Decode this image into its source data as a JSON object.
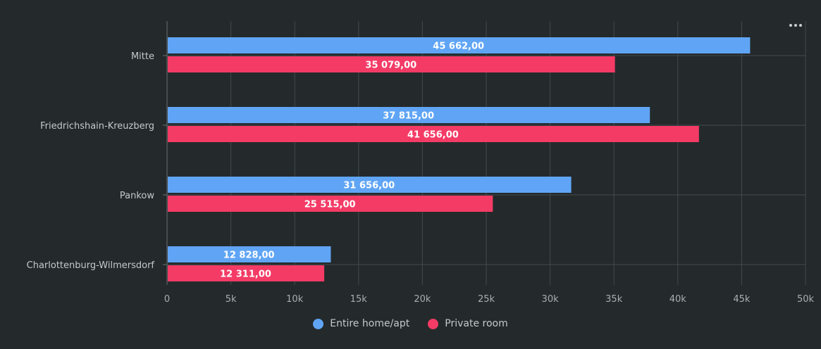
{
  "chart_data": {
    "type": "bar",
    "orientation": "horizontal",
    "categories": [
      "Mitte",
      "Friedrichshain-Kreuzberg",
      "Pankow",
      "Charlottenburg-Wilmersdorf"
    ],
    "series": [
      {
        "name": "Entire home/apt",
        "color": "#60a5f5",
        "values": [
          45662,
          37815,
          31656,
          12828
        ],
        "labels": [
          "45 662,00",
          "37 815,00",
          "31 656,00",
          "12 828,00"
        ]
      },
      {
        "name": "Private room",
        "color": "#f43b66",
        "values": [
          35079,
          41656,
          25515,
          12311
        ],
        "labels": [
          "35 079,00",
          "41 656,00",
          "25 515,00",
          "12 311,00"
        ]
      }
    ],
    "xlim": [
      0,
      50000
    ],
    "x_ticks": [
      0,
      5000,
      10000,
      15000,
      20000,
      25000,
      30000,
      35000,
      40000,
      45000,
      50000
    ],
    "x_tick_labels": [
      "0",
      "5k",
      "10k",
      "15k",
      "20k",
      "25k",
      "30k",
      "35k",
      "40k",
      "45k",
      "50k"
    ],
    "grid": true,
    "legend": "bottom-center"
  },
  "menu_icon": "ellipsis-icon"
}
